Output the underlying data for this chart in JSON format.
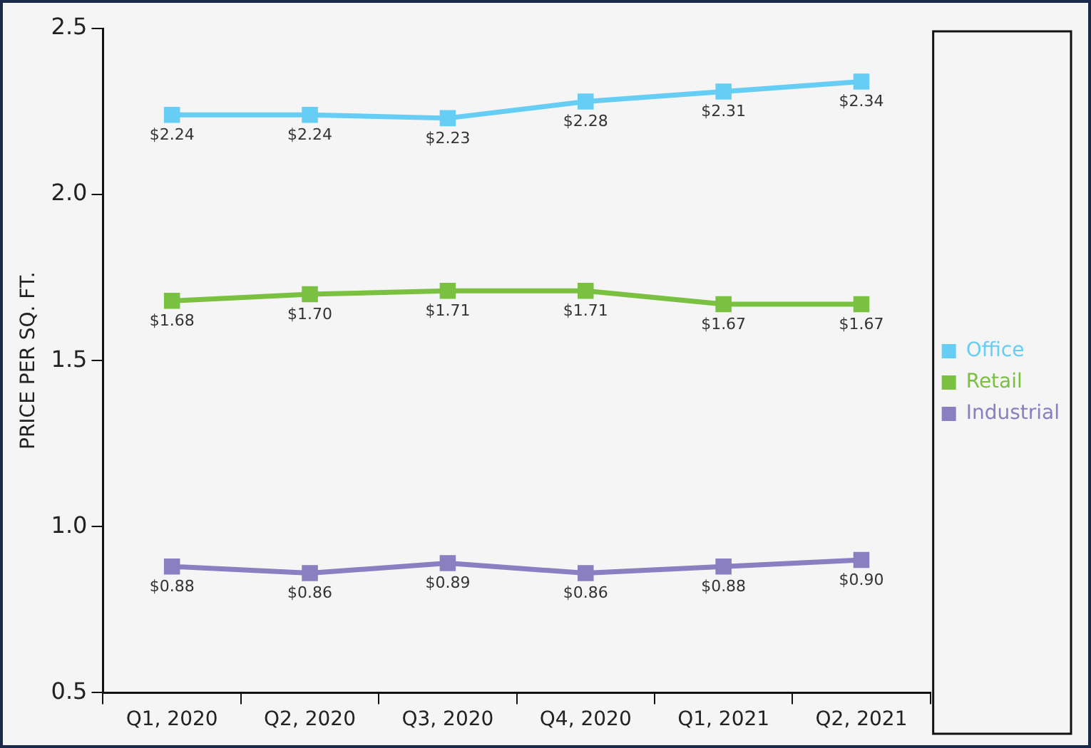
{
  "chart_data": {
    "type": "line",
    "ylabel": "PRICE PER SQ. FT.",
    "categories": [
      "Q1, 2020",
      "Q2, 2020",
      "Q3, 2020",
      "Q4, 2020",
      "Q1, 2021",
      "Q2, 2021"
    ],
    "series": [
      {
        "name": "Office",
        "color": "#66cdf4",
        "values": [
          2.24,
          2.24,
          2.23,
          2.28,
          2.31,
          2.34
        ],
        "value_labels": [
          "$2.24",
          "$2.24",
          "$2.23",
          "$2.28",
          "$2.31",
          "$2.34"
        ]
      },
      {
        "name": "Retail",
        "color": "#7ac142",
        "values": [
          1.68,
          1.7,
          1.71,
          1.71,
          1.67,
          1.67
        ],
        "value_labels": [
          "$1.68",
          "$1.70",
          "$1.71",
          "$1.71",
          "$1.67",
          "$1.67"
        ]
      },
      {
        "name": "Industrial",
        "color": "#8a7fc0",
        "values": [
          0.88,
          0.86,
          0.89,
          0.86,
          0.88,
          0.9
        ],
        "value_labels": [
          "$0.88",
          "$0.86",
          "$0.89",
          "$0.86",
          "$0.88",
          "$0.90"
        ]
      }
    ],
    "ylim": [
      0.5,
      2.5
    ],
    "yticks": [
      0.5,
      {
        "value": 1,
        "label": "1.0"
      },
      1.5,
      {
        "value": 2,
        "label": "2.0"
      },
      2.5
    ],
    "grid": false,
    "legend": "right",
    "marker": "square",
    "line_style": "solid"
  }
}
